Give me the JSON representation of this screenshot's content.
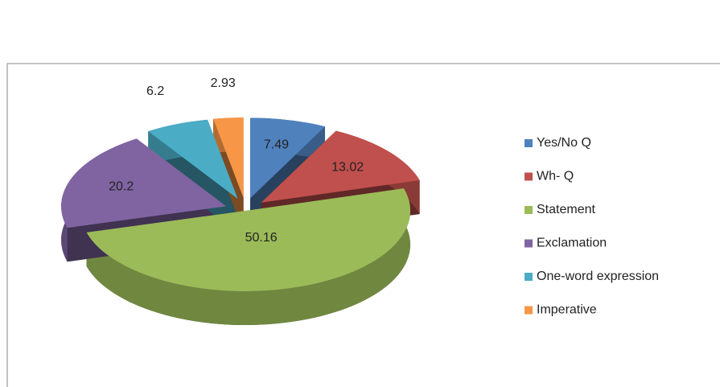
{
  "chart_data": {
    "type": "pie",
    "categories": [
      "Yes/No Q",
      "Wh- Q",
      "Statement",
      "Exclamation",
      "One-word expression",
      "Imperative"
    ],
    "values": [
      7.49,
      13.02,
      50.16,
      20.2,
      6.2,
      2.93
    ],
    "colors": [
      "#4f81bd",
      "#c0504d",
      "#9bbb59",
      "#8064a2",
      "#4bacc6",
      "#f79646"
    ],
    "legend": "right"
  }
}
